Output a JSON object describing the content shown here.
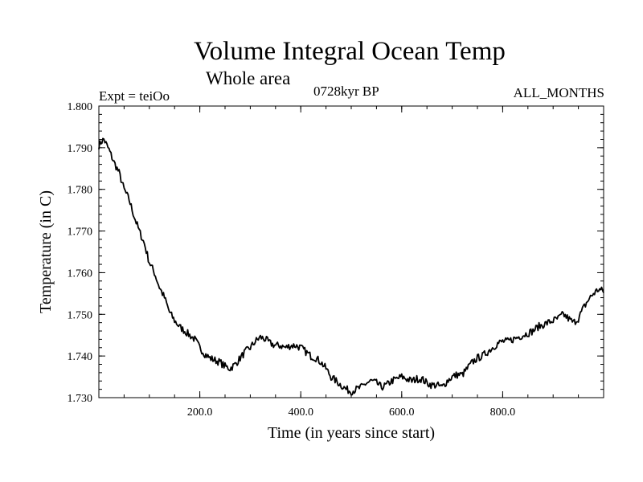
{
  "chart_data": {
    "type": "line",
    "title": "Volume Integral Ocean Temp",
    "subtitle": "Whole area",
    "experiment_label": "Expt = teiOo",
    "period_label": "0728kyr BP",
    "months_label": "ALL_MONTHS",
    "xlabel": "Time (in years since start)",
    "ylabel": "Temperature (in C)",
    "xlim": [
      0,
      1000
    ],
    "ylim": [
      1.73,
      1.8
    ],
    "x_ticks": [
      200,
      400,
      600,
      800
    ],
    "x_tick_labels": [
      "200.0",
      "400.0",
      "600.0",
      "800.0"
    ],
    "y_ticks": [
      1.73,
      1.74,
      1.75,
      1.76,
      1.77,
      1.78,
      1.79,
      1.8
    ],
    "y_tick_labels": [
      "1.730",
      "1.740",
      "1.750",
      "1.760",
      "1.770",
      "1.780",
      "1.790",
      "1.800"
    ],
    "grid": false,
    "series": [
      {
        "name": "Volume integral ocean temperature",
        "x": [
          0,
          5,
          10,
          20,
          30,
          40,
          50,
          60,
          70,
          80,
          90,
          100,
          110,
          120,
          130,
          140,
          150,
          160,
          170,
          180,
          190,
          200,
          210,
          220,
          230,
          240,
          250,
          260,
          270,
          280,
          290,
          300,
          310,
          320,
          330,
          340,
          350,
          360,
          370,
          380,
          390,
          400,
          410,
          420,
          430,
          440,
          450,
          460,
          470,
          480,
          490,
          500,
          510,
          520,
          530,
          540,
          550,
          560,
          570,
          580,
          590,
          600,
          610,
          620,
          630,
          640,
          650,
          660,
          670,
          680,
          690,
          700,
          710,
          720,
          730,
          740,
          750,
          760,
          770,
          780,
          790,
          800,
          810,
          820,
          830,
          840,
          850,
          860,
          870,
          880,
          890,
          900,
          910,
          920,
          930,
          940,
          950,
          960,
          970,
          980,
          990,
          1000
        ],
        "values": [
          1.7905,
          1.7915,
          1.792,
          1.7895,
          1.7865,
          1.784,
          1.78,
          1.7775,
          1.7735,
          1.77,
          1.767,
          1.7625,
          1.76,
          1.7565,
          1.754,
          1.7505,
          1.7485,
          1.747,
          1.746,
          1.745,
          1.744,
          1.742,
          1.7405,
          1.7395,
          1.739,
          1.7385,
          1.7375,
          1.737,
          1.738,
          1.7395,
          1.741,
          1.742,
          1.7435,
          1.7445,
          1.744,
          1.743,
          1.7425,
          1.7425,
          1.742,
          1.7425,
          1.7425,
          1.742,
          1.741,
          1.74,
          1.7395,
          1.7385,
          1.737,
          1.735,
          1.734,
          1.733,
          1.732,
          1.7315,
          1.732,
          1.7325,
          1.7335,
          1.734,
          1.7335,
          1.7325,
          1.733,
          1.734,
          1.7345,
          1.735,
          1.7345,
          1.734,
          1.7345,
          1.7345,
          1.7335,
          1.733,
          1.733,
          1.7325,
          1.734,
          1.735,
          1.7355,
          1.7355,
          1.737,
          1.7385,
          1.7395,
          1.74,
          1.741,
          1.742,
          1.743,
          1.7435,
          1.7435,
          1.744,
          1.7445,
          1.745,
          1.7455,
          1.746,
          1.747,
          1.7475,
          1.748,
          1.7485,
          1.749,
          1.75,
          1.749,
          1.748,
          1.749,
          1.7515,
          1.7535,
          1.755,
          1.756,
          1.7555
        ]
      }
    ]
  }
}
